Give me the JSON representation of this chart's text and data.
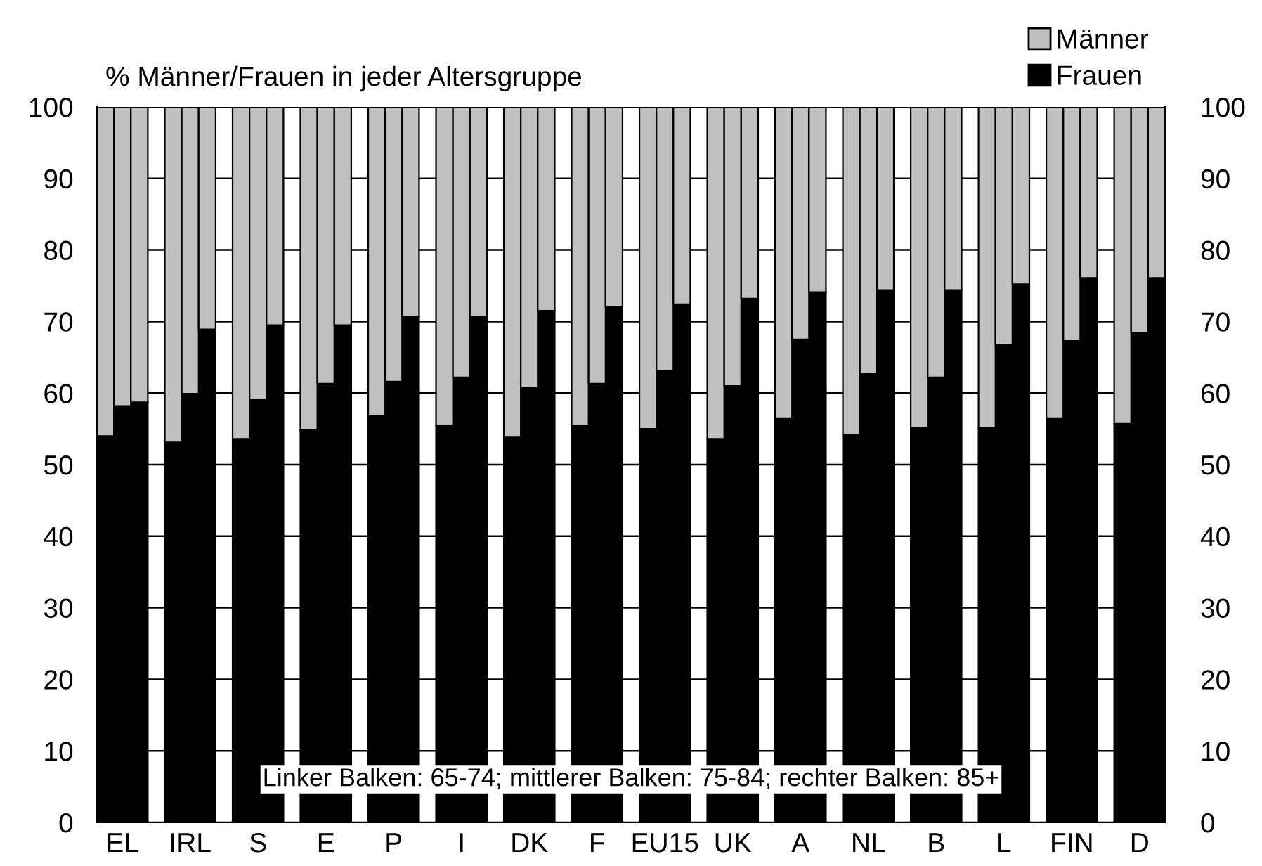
{
  "chart_data": {
    "type": "bar",
    "stacked": true,
    "title": "% Männer/Frauen in jeder Altersgruppe",
    "categories": [
      null,
      "EL",
      null,
      null,
      null,
      "IRL",
      null,
      null,
      null,
      "S",
      null,
      null,
      null,
      "E",
      null,
      null,
      null,
      "P",
      null,
      null,
      null,
      "I",
      null,
      null,
      null,
      "DK",
      null,
      null,
      null,
      "F",
      null,
      null,
      null,
      "EU15",
      null,
      null,
      null,
      "UK",
      null,
      null,
      null,
      "A",
      null,
      null,
      null,
      "NL",
      null,
      null,
      null,
      "B",
      null,
      null,
      null,
      "L",
      null,
      null,
      null,
      "FIN",
      null,
      null,
      null,
      "D",
      null
    ],
    "series": [
      {
        "name": "Frauen",
        "color": "#000000",
        "values": [
          54.0,
          58.2,
          58.7,
          null,
          53.1,
          59.9,
          68.9,
          null,
          53.6,
          59.1,
          69.5,
          null,
          54.8,
          61.3,
          69.5,
          null,
          56.8,
          61.6,
          70.7,
          null,
          55.4,
          62.2,
          70.7,
          null,
          53.9,
          60.7,
          71.5,
          null,
          55.4,
          61.3,
          72.1,
          null,
          55.0,
          63.1,
          72.4,
          null,
          53.6,
          61.0,
          73.2,
          null,
          56.5,
          67.5,
          74.1,
          null,
          54.2,
          62.7,
          74.4,
          null,
          55.1,
          62.2,
          74.4,
          null,
          55.1,
          66.7,
          75.2,
          null,
          56.5,
          67.3,
          76.1,
          null,
          55.7,
          68.4,
          76.1
        ]
      },
      {
        "name": "Männer",
        "color": "#c0c0c0",
        "values": [
          46.0,
          41.8,
          41.3,
          null,
          46.9,
          40.1,
          31.1,
          null,
          46.4,
          40.9,
          30.5,
          null,
          45.2,
          38.7,
          30.5,
          null,
          43.2,
          38.4,
          29.3,
          null,
          44.6,
          37.8,
          29.3,
          null,
          46.1,
          39.3,
          28.5,
          null,
          44.6,
          38.7,
          27.9,
          null,
          45.0,
          36.9,
          27.6,
          null,
          46.4,
          39.0,
          26.8,
          null,
          43.5,
          32.5,
          25.9,
          null,
          45.8,
          37.3,
          25.6,
          null,
          44.9,
          37.8,
          25.6,
          null,
          44.9,
          33.3,
          24.8,
          null,
          43.5,
          32.7,
          23.9,
          null,
          44.3,
          31.6,
          23.9
        ]
      }
    ],
    "ylim": [
      0,
      100
    ],
    "yticks": [
      0,
      10,
      20,
      30,
      40,
      50,
      60,
      70,
      80,
      90,
      100
    ],
    "y2lim": [
      0,
      100
    ],
    "y2ticks": [
      0,
      10,
      20,
      30,
      40,
      50,
      60,
      70,
      80,
      90,
      100
    ],
    "grid": "y",
    "legend": "top right",
    "annotations": [
      "Linker Balken: 65-74; mittlerer Balken: 75-84; rechter Balken: 85+"
    ]
  }
}
